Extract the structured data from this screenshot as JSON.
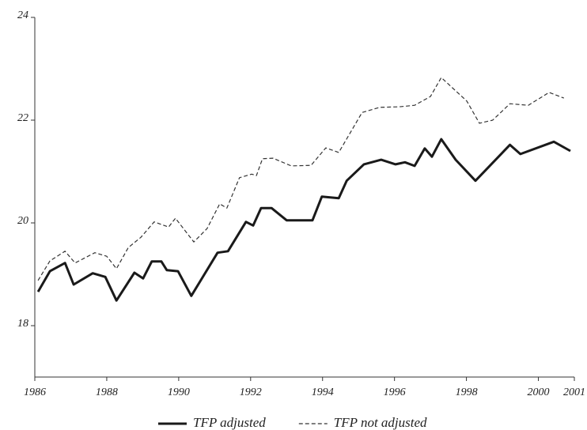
{
  "chart_data": {
    "type": "line",
    "xlim": [
      1986,
      2001
    ],
    "xticks": [
      1986,
      1988,
      1990,
      1992,
      1994,
      1996,
      1998,
      2000,
      2001
    ],
    "ylim": [
      17,
      24
    ],
    "yticks": [
      18,
      20,
      22,
      24
    ],
    "legend": "bottom",
    "series": [
      {
        "name": "TFP adjusted",
        "color": "#1a1a1a",
        "dashed": false,
        "x": [
          1986.09,
          1986.42,
          1986.84,
          1987.08,
          1987.61,
          1987.96,
          1988.27,
          1988.77,
          1989.01,
          1989.25,
          1989.52,
          1989.67,
          1989.98,
          1990.35,
          1991.08,
          1991.37,
          1991.87,
          1992.07,
          1992.29,
          1992.58,
          1993.0,
          1993.72,
          1993.98,
          1994.45,
          1994.67,
          1995.15,
          1995.63,
          1996.03,
          1996.29,
          1996.56,
          1996.84,
          1997.04,
          1997.3,
          1997.7,
          1998.25,
          1999.21,
          1999.5,
          2000.43,
          2000.89
        ],
        "values": [
          18.66,
          19.06,
          19.22,
          18.8,
          19.02,
          18.95,
          18.49,
          19.03,
          18.92,
          19.25,
          19.25,
          19.08,
          19.06,
          18.58,
          19.42,
          19.45,
          20.02,
          19.95,
          20.29,
          20.29,
          20.05,
          20.05,
          20.51,
          20.48,
          20.82,
          21.14,
          21.23,
          21.14,
          21.18,
          21.11,
          21.45,
          21.29,
          21.63,
          21.23,
          20.82,
          21.52,
          21.34,
          21.58,
          21.4
        ]
      },
      {
        "name": "TFP not adjusted",
        "color": "#333333",
        "dashed": true,
        "x": [
          1986.09,
          1986.42,
          1986.84,
          1987.12,
          1987.67,
          1988.0,
          1988.27,
          1988.6,
          1988.95,
          1989.32,
          1989.72,
          1989.91,
          1990.42,
          1990.79,
          1991.14,
          1991.34,
          1991.69,
          1992.03,
          1992.16,
          1992.33,
          1992.62,
          1993.13,
          1993.68,
          1994.09,
          1994.45,
          1995.1,
          1995.59,
          1996.14,
          1996.56,
          1997.0,
          1997.3,
          1997.7,
          1998.01,
          1998.36,
          1998.73,
          1999.21,
          1999.72,
          2000.3,
          2000.71
        ],
        "values": [
          18.88,
          19.26,
          19.45,
          19.22,
          19.42,
          19.35,
          19.11,
          19.52,
          19.72,
          20.02,
          19.92,
          20.09,
          19.63,
          19.89,
          20.37,
          20.29,
          20.88,
          20.95,
          20.92,
          21.25,
          21.26,
          21.11,
          21.12,
          21.46,
          21.37,
          22.15,
          22.25,
          22.26,
          22.29,
          22.46,
          22.83,
          22.57,
          22.37,
          21.94,
          22.0,
          22.32,
          22.29,
          22.54,
          22.43
        ]
      }
    ]
  }
}
